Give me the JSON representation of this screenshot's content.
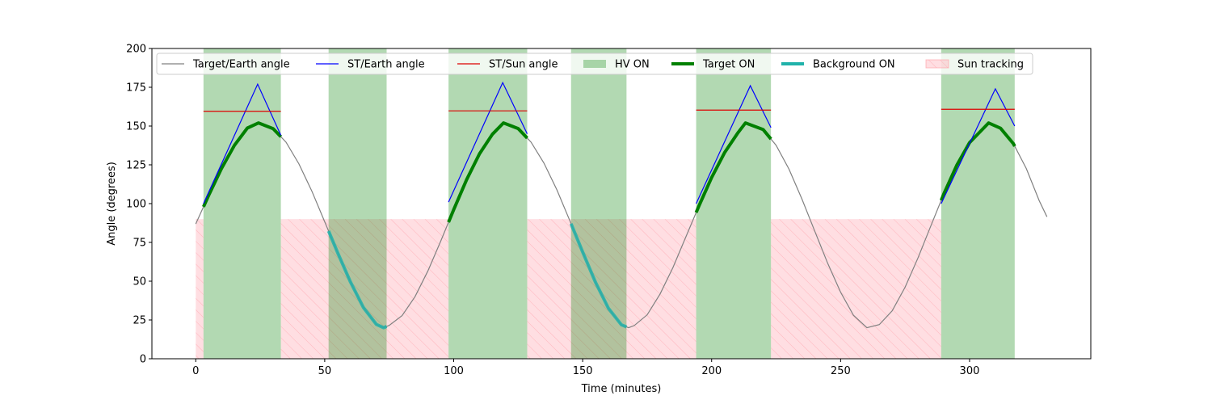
{
  "chart_data": {
    "type": "line",
    "xlabel": "Time (minutes)",
    "ylabel": "Angle (degrees)",
    "xlim": [
      -17,
      347
    ],
    "ylim": [
      0,
      200
    ],
    "xticks": [
      0,
      50,
      100,
      150,
      200,
      250,
      300
    ],
    "yticks": [
      0,
      25,
      50,
      75,
      100,
      125,
      150,
      175,
      200
    ],
    "grid": false,
    "legend_position": "top",
    "series": [
      {
        "name": "Target/Earth angle",
        "color": "#808080",
        "line_width": "thin",
        "x": [
          0,
          5,
          10,
          15,
          20,
          24.3,
          30,
          35,
          40,
          45,
          50,
          55,
          60,
          65,
          70,
          72.8,
          75,
          80,
          85,
          90,
          95,
          100,
          105,
          110,
          115,
          119.3,
          125,
          130,
          135,
          140,
          145,
          150,
          155,
          160,
          165,
          167.8,
          170,
          175,
          180,
          185,
          190,
          195,
          200,
          205,
          210,
          213.1,
          220,
          225,
          230,
          235,
          240,
          245,
          250,
          255,
          260.2,
          265,
          270,
          275,
          280,
          285,
          290,
          295,
          300,
          307.4,
          312,
          317,
          322,
          327,
          330
        ],
        "y": [
          86.9,
          105.3,
          122.7,
          137.6,
          148.7,
          152.0,
          148.3,
          139.6,
          125.6,
          108.1,
          88.3,
          68.4,
          49.4,
          33.0,
          22.2,
          20.0,
          21.5,
          27.8,
          40.0,
          56.6,
          75.9,
          96.1,
          115.4,
          132.1,
          144.7,
          152.0,
          148.4,
          139.6,
          126.1,
          108.9,
          89.1,
          68.8,
          49.2,
          32.5,
          21.9,
          20.0,
          21.4,
          28.3,
          41.7,
          58.8,
          78.5,
          98.2,
          116.8,
          132.8,
          145.2,
          152.0,
          147.7,
          137.6,
          122.2,
          103.0,
          82.2,
          61.5,
          42.9,
          28.0,
          20.0,
          22.0,
          30.9,
          46.1,
          65.0,
          85.7,
          106.2,
          124.6,
          139.3,
          152.0,
          148.6,
          138.6,
          122.6,
          101.9,
          91.5
        ]
      },
      {
        "name": "ST/Earth angle",
        "color": "#0000ff",
        "line_width": "thin",
        "segments": [
          {
            "x": [
              3,
              24,
              33
            ],
            "y": [
              100,
              177,
              144
            ]
          },
          {
            "x": [
              98,
              119,
              128.5
            ],
            "y": [
              101,
              178,
              145
            ]
          },
          {
            "x": [
              194,
              215,
              223
            ],
            "y": [
              100,
              176,
              149
            ]
          },
          {
            "x": [
              289,
              310,
              317.5
            ],
            "y": [
              100,
              174,
              150
            ]
          }
        ]
      },
      {
        "name": "ST/Sun angle",
        "color": "#dd0000",
        "line_width": "thin",
        "segments": [
          {
            "x": [
              3,
              33
            ],
            "y": [
              159.5,
              159.5
            ]
          },
          {
            "x": [
              98,
              128.5
            ],
            "y": [
              159.8,
              159.8
            ]
          },
          {
            "x": [
              194,
              223
            ],
            "y": [
              160.3,
              160.3
            ]
          },
          {
            "x": [
              289,
              317.5
            ],
            "y": [
              160.8,
              160.8
            ]
          }
        ]
      }
    ],
    "target_on": {
      "name": "Target ON",
      "color": "#008000",
      "line_width": "thick",
      "intervals": [
        [
          3,
          33
        ],
        [
          98,
          128.5
        ],
        [
          194,
          223
        ],
        [
          289,
          317.5
        ]
      ]
    },
    "background_on": {
      "name": "Background ON",
      "color": "#20b2aa",
      "line_width": "thick",
      "intervals": [
        [
          51.5,
          74
        ],
        [
          145.5,
          167
        ]
      ]
    },
    "hv_on": {
      "name": "HV ON",
      "color": "#008000",
      "opacity": 0.3,
      "intervals": [
        [
          3,
          33
        ],
        [
          51.5,
          74
        ],
        [
          98,
          128.5
        ],
        [
          145.5,
          167
        ],
        [
          194,
          223
        ],
        [
          289,
          317.5
        ]
      ]
    },
    "sun_tracking": {
      "name": "Sun tracking",
      "color": "#ff9aa2",
      "hatch": "diagonal",
      "y_top": 90,
      "intervals": [
        [
          0,
          3
        ],
        [
          33,
          98
        ],
        [
          128.5,
          194
        ],
        [
          223,
          289
        ]
      ]
    },
    "legend": [
      {
        "label": "Target/Earth angle",
        "kind": "line",
        "color": "#808080"
      },
      {
        "label": "ST/Earth angle",
        "kind": "line",
        "color": "#0000ff"
      },
      {
        "label": "ST/Sun angle",
        "kind": "line",
        "color": "#dd0000"
      },
      {
        "label": "HV ON",
        "kind": "patch",
        "color": "#008000"
      },
      {
        "label": "Target ON",
        "kind": "thick-line",
        "color": "#008000"
      },
      {
        "label": "Background ON",
        "kind": "thick-line",
        "color": "#20b2aa"
      },
      {
        "label": "Sun tracking",
        "kind": "hatch-patch",
        "color": "#ff9aa2"
      }
    ]
  }
}
